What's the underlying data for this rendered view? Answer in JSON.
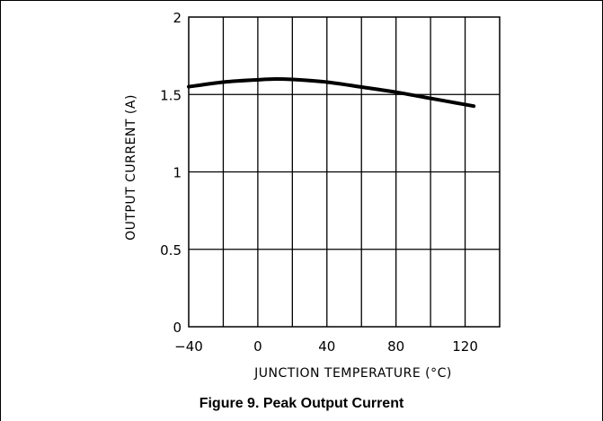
{
  "figure": {
    "caption": "Figure 9. Peak Output Current"
  },
  "chart_data": {
    "type": "line",
    "title": "",
    "xlabel": "JUNCTION TEMPERATURE (°C)",
    "ylabel": "OUTPUT CURRENT (A)",
    "xlim": [
      -40,
      140
    ],
    "ylim": [
      0,
      2
    ],
    "grid": true,
    "x_ticks": [
      -40,
      0,
      40,
      80,
      120
    ],
    "x_tick_labels": [
      "−40",
      "0",
      "40",
      "80",
      "120"
    ],
    "y_ticks": [
      0,
      0.5,
      1,
      1.5,
      2
    ],
    "y_tick_labels": [
      "0",
      "0.5",
      "1",
      "1.5",
      "2"
    ],
    "series": [
      {
        "x": [
          -40,
          -20,
          0,
          10,
          20,
          40,
          60,
          80,
          100,
          125
        ],
        "y": [
          1.55,
          1.58,
          1.595,
          1.6,
          1.597,
          1.58,
          1.548,
          1.515,
          1.475,
          1.425
        ]
      }
    ]
  }
}
